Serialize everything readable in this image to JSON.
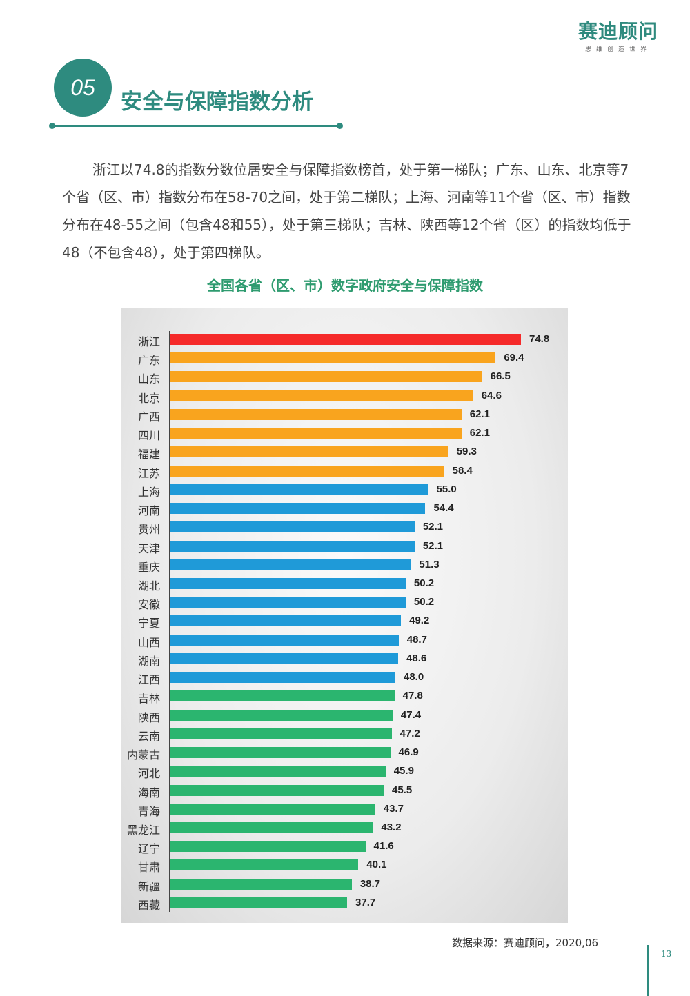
{
  "header": {
    "logo_name": "赛迪顾问",
    "logo_slogan": "思维创造世界"
  },
  "section": {
    "number": "05",
    "title": "安全与保障指数分析"
  },
  "paragraph": "浙江以74.8的指数分数位居安全与保障指数榜首，处于第一梯队；广东、山东、北京等7个省（区、市）指数分布在58-70之间，处于第二梯队；上海、河南等11个省（区、市）指数分布在48-55之间（包含48和55），处于第三梯队；吉林、陕西等12个省（区）的指数均低于48（不包含48），处于第四梯队。",
  "chart_data": {
    "type": "bar",
    "orientation": "horizontal",
    "title": "全国各省（区、市）数字政府安全与保障指数",
    "xlim": [
      0,
      80
    ],
    "grid": false,
    "tier_colors": {
      "1": "#f52a2a",
      "2": "#f9a41e",
      "3": "#1f9ad8",
      "4": "#2bb56f"
    },
    "categories": [
      "浙江",
      "广东",
      "山东",
      "北京",
      "广西",
      "四川",
      "福建",
      "江苏",
      "上海",
      "河南",
      "贵州",
      "天津",
      "重庆",
      "湖北",
      "安徽",
      "宁夏",
      "山西",
      "湖南",
      "江西",
      "吉林",
      "陕西",
      "云南",
      "内蒙古",
      "河北",
      "海南",
      "青海",
      "黑龙江",
      "辽宁",
      "甘肃",
      "新疆",
      "西藏"
    ],
    "values": [
      74.8,
      69.4,
      66.5,
      64.6,
      62.1,
      62.1,
      59.3,
      58.4,
      55.0,
      54.4,
      52.1,
      52.1,
      51.3,
      50.2,
      50.2,
      49.2,
      48.7,
      48.6,
      48.0,
      47.8,
      47.4,
      47.2,
      46.9,
      45.9,
      45.5,
      43.7,
      43.2,
      41.6,
      40.1,
      38.7,
      37.7
    ],
    "value_labels": [
      "74.8",
      "69.4",
      "66.5",
      "64.6",
      "62.1",
      "62.1",
      "59.3",
      "58.4",
      "55.0",
      "54.4",
      "52.1",
      "52.1",
      "51.3",
      "50.2",
      "50.2",
      "49.2",
      "48.7",
      "48.6",
      "48.0",
      "47.8",
      "47.4",
      "47.2",
      "46.9",
      "45.9",
      "45.5",
      "43.7",
      "43.2",
      "41.6",
      "40.1",
      "38.7",
      "37.7"
    ],
    "tiers": [
      1,
      2,
      2,
      2,
      2,
      2,
      2,
      2,
      3,
      3,
      3,
      3,
      3,
      3,
      3,
      3,
      3,
      3,
      3,
      4,
      4,
      4,
      4,
      4,
      4,
      4,
      4,
      4,
      4,
      4,
      4
    ]
  },
  "footer": {
    "source": "数据来源：赛迪顾问，2020,06",
    "page_number": "13"
  }
}
